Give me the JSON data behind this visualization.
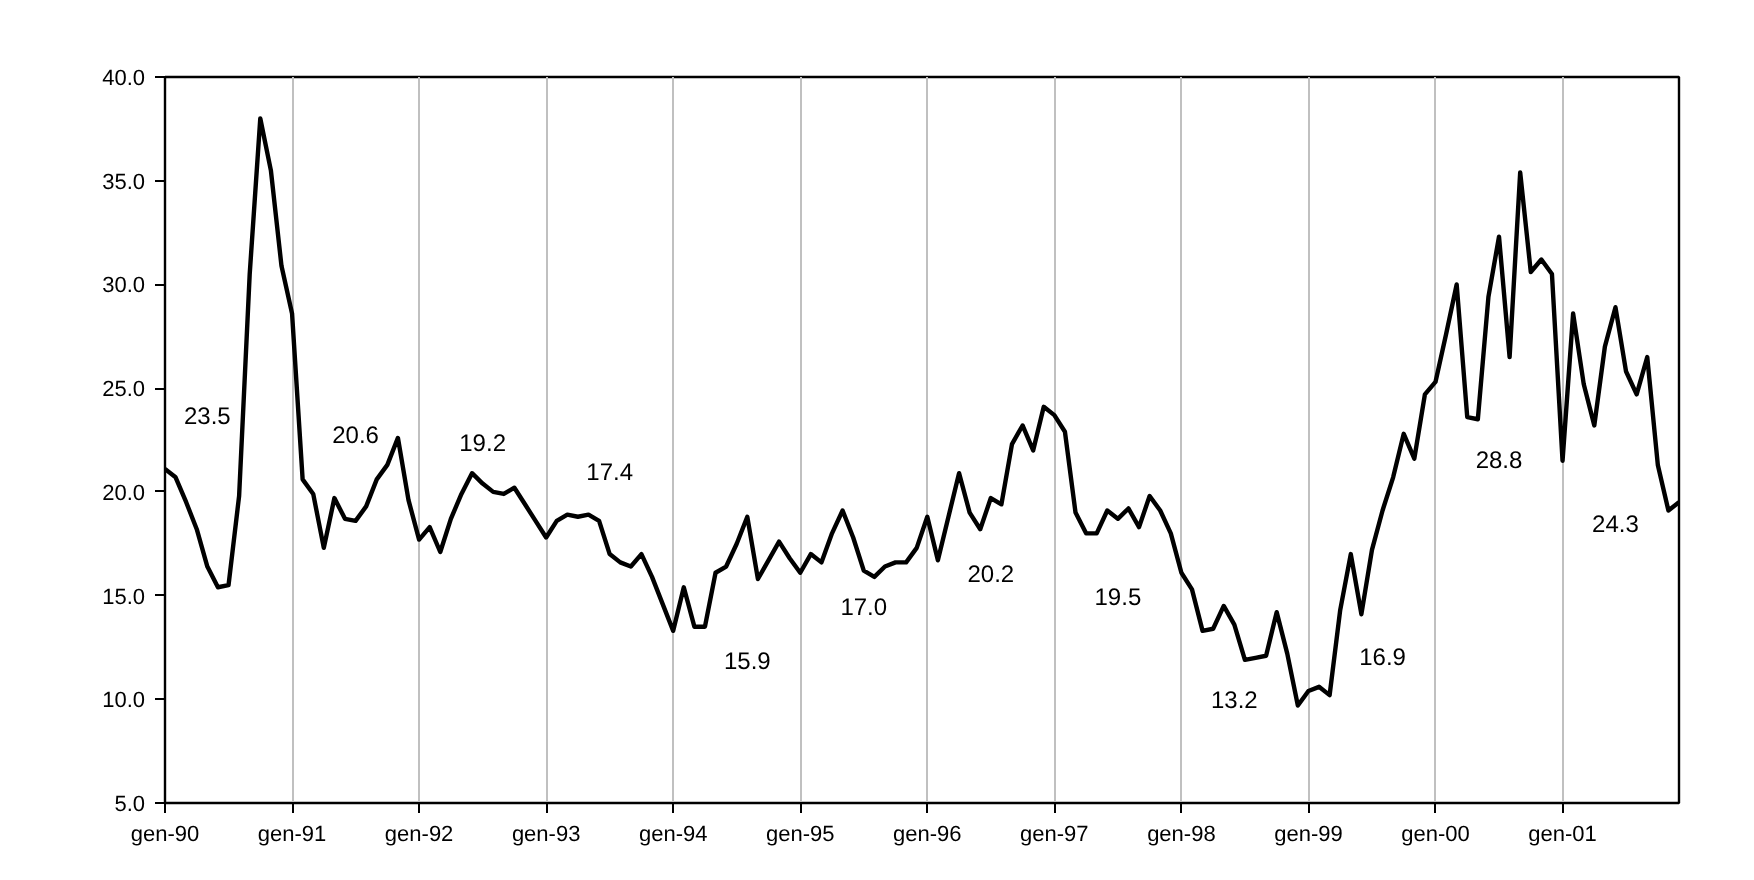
{
  "chart_data": {
    "type": "line",
    "x": [
      "1990-01",
      "1990-02",
      "1990-03",
      "1990-04",
      "1990-05",
      "1990-06",
      "1990-07",
      "1990-08",
      "1990-09",
      "1990-10",
      "1990-11",
      "1990-12",
      "1991-01",
      "1991-02",
      "1991-03",
      "1991-04",
      "1991-05",
      "1991-06",
      "1991-07",
      "1991-08",
      "1991-09",
      "1991-10",
      "1991-11",
      "1991-12",
      "1992-01",
      "1992-02",
      "1992-03",
      "1992-04",
      "1992-05",
      "1992-06",
      "1992-07",
      "1992-08",
      "1992-09",
      "1992-10",
      "1992-11",
      "1992-12",
      "1993-01",
      "1993-02",
      "1993-03",
      "1993-04",
      "1993-05",
      "1993-06",
      "1993-07",
      "1993-08",
      "1993-09",
      "1993-10",
      "1993-11",
      "1993-12",
      "1994-01",
      "1994-02",
      "1994-03",
      "1994-04",
      "1994-05",
      "1994-06",
      "1994-07",
      "1994-08",
      "1994-09",
      "1994-10",
      "1994-11",
      "1994-12",
      "1995-01",
      "1995-02",
      "1995-03",
      "1995-04",
      "1995-05",
      "1995-06",
      "1995-07",
      "1995-08",
      "1995-09",
      "1995-10",
      "1995-11",
      "1995-12",
      "1996-01",
      "1996-02",
      "1996-03",
      "1996-04",
      "1996-05",
      "1996-06",
      "1996-07",
      "1996-08",
      "1996-09",
      "1996-10",
      "1996-11",
      "1996-12",
      "1997-01",
      "1997-02",
      "1997-03",
      "1997-04",
      "1997-05",
      "1997-06",
      "1997-07",
      "1997-08",
      "1997-09",
      "1997-10",
      "1997-11",
      "1997-12",
      "1998-01",
      "1998-02",
      "1998-03",
      "1998-04",
      "1998-05",
      "1998-06",
      "1998-07",
      "1998-08",
      "1998-09",
      "1998-10",
      "1998-11",
      "1998-12",
      "1999-01",
      "1999-02",
      "1999-03",
      "1999-04",
      "1999-05",
      "1999-06",
      "1999-07",
      "1999-08",
      "1999-09",
      "1999-10",
      "1999-11",
      "1999-12",
      "2000-01",
      "2000-02",
      "2000-03",
      "2000-04",
      "2000-05",
      "2000-06",
      "2000-07",
      "2000-08",
      "2000-09",
      "2000-10",
      "2000-11",
      "2000-12",
      "2001-01",
      "2001-02",
      "2001-03",
      "2001-04",
      "2001-05",
      "2001-06",
      "2001-07",
      "2001-08",
      "2001-09",
      "2001-10",
      "2001-11",
      "2001-12"
    ],
    "values": [
      21.1,
      20.7,
      19.5,
      18.2,
      16.4,
      15.4,
      15.5,
      19.8,
      30.5,
      38.0,
      35.5,
      30.9,
      28.6,
      20.6,
      19.9,
      17.3,
      19.7,
      18.7,
      18.6,
      19.3,
      20.6,
      21.3,
      22.6,
      19.6,
      17.7,
      18.3,
      17.1,
      18.7,
      19.9,
      20.9,
      20.4,
      20.0,
      19.9,
      20.2,
      19.4,
      18.6,
      17.8,
      18.6,
      18.9,
      18.8,
      18.9,
      18.6,
      17.0,
      16.6,
      16.4,
      17.0,
      15.9,
      14.6,
      13.3,
      15.4,
      13.5,
      13.5,
      16.1,
      16.4,
      17.5,
      18.8,
      15.8,
      16.7,
      17.6,
      16.8,
      16.1,
      17.0,
      16.6,
      18.0,
      19.1,
      17.8,
      16.2,
      15.9,
      16.4,
      16.6,
      16.6,
      17.3,
      18.8,
      16.7,
      18.8,
      20.9,
      19.0,
      18.2,
      19.7,
      19.4,
      22.3,
      23.2,
      22.0,
      24.1,
      23.7,
      22.9,
      19.0,
      18.0,
      18.0,
      19.1,
      18.7,
      19.2,
      18.3,
      19.8,
      19.1,
      18.0,
      16.1,
      15.3,
      13.3,
      13.4,
      14.5,
      13.6,
      11.9,
      12.0,
      12.1,
      14.2,
      12.2,
      9.7,
      10.4,
      10.6,
      10.2,
      14.3,
      17.0,
      14.1,
      17.2,
      19.1,
      20.7,
      22.8,
      21.6,
      24.7,
      25.3,
      27.6,
      30.0,
      23.6,
      23.5,
      29.4,
      32.3,
      26.5,
      35.4,
      30.6,
      31.2,
      30.5,
      21.5,
      28.6,
      25.2,
      23.2,
      27.0,
      28.9,
      25.8,
      24.7,
      26.5,
      21.3,
      19.1,
      19.5
    ],
    "color": "#000000",
    "xlim": [
      "1990-01",
      "2001-12"
    ],
    "xticks": [
      {
        "value": "1990-01",
        "label": "gen-90"
      },
      {
        "value": "1991-01",
        "label": "gen-91"
      },
      {
        "value": "1992-01",
        "label": "gen-92"
      },
      {
        "value": "1993-01",
        "label": "gen-93"
      },
      {
        "value": "1994-01",
        "label": "gen-94"
      },
      {
        "value": "1995-01",
        "label": "gen-95"
      },
      {
        "value": "1996-01",
        "label": "gen-96"
      },
      {
        "value": "1997-01",
        "label": "gen-97"
      },
      {
        "value": "1998-01",
        "label": "gen-98"
      },
      {
        "value": "1999-01",
        "label": "gen-99"
      },
      {
        "value": "2000-01",
        "label": "gen-00"
      },
      {
        "value": "2001-01",
        "label": "gen-01"
      }
    ],
    "ylim": [
      5,
      40
    ],
    "yticks": [
      {
        "value": 5,
        "label": "5.0"
      },
      {
        "value": 10,
        "label": "10.0"
      },
      {
        "value": 15,
        "label": "15.0"
      },
      {
        "value": 20,
        "label": "20.0"
      },
      {
        "value": 25,
        "label": "25.0"
      },
      {
        "value": 30,
        "label": "30.0"
      },
      {
        "value": 35,
        "label": "35.0"
      },
      {
        "value": 40,
        "label": "40.0"
      }
    ],
    "grid": "x",
    "annotations": [
      "23.5",
      "20.6",
      "19.2",
      "17.4",
      "15.9",
      "17.0",
      "20.2",
      "19.5",
      "13.2",
      "16.9",
      "28.8",
      "24.3"
    ]
  }
}
